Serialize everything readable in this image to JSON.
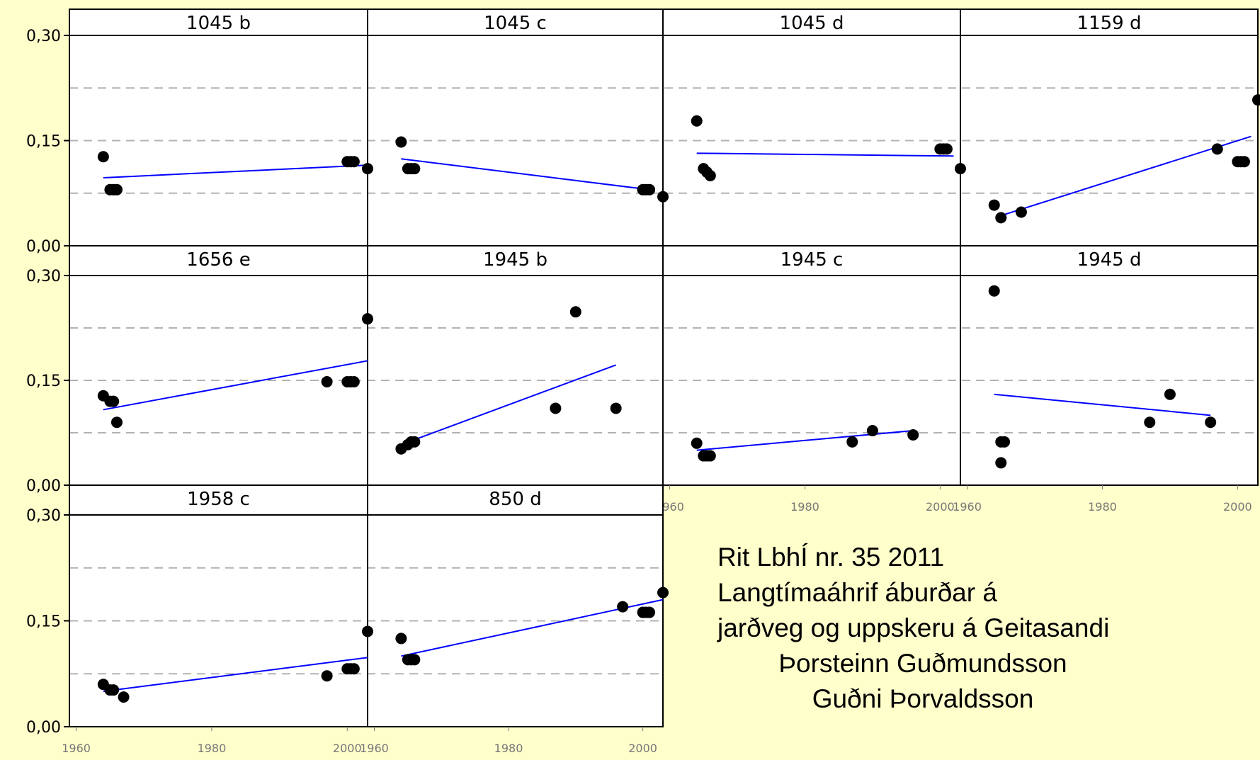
{
  "chart_data": {
    "type": "scatter",
    "ylim": [
      0,
      0.3
    ],
    "xlim": [
      1959,
      2003
    ],
    "y_ticks": [
      "0,00",
      "0,15",
      "0,30"
    ],
    "x_ticks": [
      "1960",
      "1980",
      "2000"
    ],
    "grid": "dashed horizontal at 0.075 and 0.225",
    "panels": [
      {
        "title": "1045 b",
        "points": [
          [
            1964,
            0.127
          ],
          [
            1965,
            0.08
          ],
          [
            1965.5,
            0.08
          ],
          [
            1966,
            0.08
          ],
          [
            2000,
            0.12
          ],
          [
            2000.5,
            0.12
          ],
          [
            2001,
            0.12
          ],
          [
            2003,
            0.11
          ]
        ],
        "fit": [
          [
            1964,
            0.097
          ],
          [
            2003,
            0.115
          ]
        ]
      },
      {
        "title": "1045 c",
        "points": [
          [
            1964,
            0.148
          ],
          [
            1965,
            0.11
          ],
          [
            1965.5,
            0.11
          ],
          [
            1966,
            0.11
          ],
          [
            2000,
            0.08
          ],
          [
            2000.5,
            0.08
          ],
          [
            2001,
            0.08
          ],
          [
            2003,
            0.07
          ]
        ],
        "fit": [
          [
            1964,
            0.124
          ],
          [
            2001,
            0.08
          ]
        ]
      },
      {
        "title": "1045 d",
        "points": [
          [
            1964,
            0.178
          ],
          [
            1965,
            0.11
          ],
          [
            1965.5,
            0.105
          ],
          [
            1966,
            0.1
          ],
          [
            2000,
            0.138
          ],
          [
            2000.5,
            0.138
          ],
          [
            2001,
            0.138
          ],
          [
            2003,
            0.11
          ]
        ],
        "fit": [
          [
            1964,
            0.132
          ],
          [
            2002,
            0.128
          ]
        ]
      },
      {
        "title": "1159 d",
        "points": [
          [
            1964,
            0.058
          ],
          [
            1965,
            0.04
          ],
          [
            1968,
            0.048
          ],
          [
            1997,
            0.138
          ],
          [
            2000,
            0.12
          ],
          [
            2000.5,
            0.12
          ],
          [
            2001,
            0.12
          ],
          [
            2003,
            0.208
          ]
        ],
        "fit": [
          [
            1965,
            0.043
          ],
          [
            2002,
            0.156
          ]
        ]
      },
      {
        "title": "1656 e",
        "points": [
          [
            1964,
            0.128
          ],
          [
            1965,
            0.12
          ],
          [
            1965.5,
            0.12
          ],
          [
            1966,
            0.09
          ],
          [
            1997,
            0.148
          ],
          [
            2000,
            0.148
          ],
          [
            2000.5,
            0.148
          ],
          [
            2001,
            0.148
          ],
          [
            2003,
            0.238
          ]
        ],
        "fit": [
          [
            1964,
            0.108
          ],
          [
            2003,
            0.178
          ]
        ]
      },
      {
        "title": "1945 b",
        "points": [
          [
            1964,
            0.052
          ],
          [
            1965,
            0.058
          ],
          [
            1965.5,
            0.062
          ],
          [
            1966,
            0.062
          ],
          [
            1987,
            0.11
          ],
          [
            1990,
            0.248
          ],
          [
            1996,
            0.11
          ]
        ],
        "fit": [
          [
            1964,
            0.058
          ],
          [
            1996,
            0.172
          ]
        ]
      },
      {
        "title": "1945 c",
        "points": [
          [
            1964,
            0.06
          ],
          [
            1965,
            0.042
          ],
          [
            1965.5,
            0.042
          ],
          [
            1966,
            0.042
          ],
          [
            1987,
            0.062
          ],
          [
            1990,
            0.078
          ],
          [
            1996,
            0.072
          ]
        ],
        "fit": [
          [
            1964,
            0.05
          ],
          [
            1996,
            0.078
          ]
        ]
      },
      {
        "title": "1945 d",
        "points": [
          [
            1964,
            0.278
          ],
          [
            1965,
            0.062
          ],
          [
            1965.5,
            0.062
          ],
          [
            1965,
            0.032
          ],
          [
            1987,
            0.09
          ],
          [
            1990,
            0.13
          ],
          [
            1996,
            0.09
          ]
        ],
        "fit": [
          [
            1964,
            0.13
          ],
          [
            1996,
            0.1
          ]
        ]
      },
      {
        "title": "1958 c",
        "points": [
          [
            1964,
            0.06
          ],
          [
            1965,
            0.052
          ],
          [
            1965.5,
            0.052
          ],
          [
            1967,
            0.042
          ],
          [
            1997,
            0.072
          ],
          [
            2000,
            0.082
          ],
          [
            2000.5,
            0.082
          ],
          [
            2001,
            0.082
          ],
          [
            2003,
            0.135
          ]
        ],
        "fit": [
          [
            1964,
            0.05
          ],
          [
            2003,
            0.098
          ]
        ]
      },
      {
        "title": "850 d",
        "points": [
          [
            1964,
            0.125
          ],
          [
            1965,
            0.095
          ],
          [
            1965.5,
            0.095
          ],
          [
            1966,
            0.095
          ],
          [
            1997,
            0.17
          ],
          [
            2000,
            0.162
          ],
          [
            2000.5,
            0.162
          ],
          [
            2001,
            0.162
          ],
          [
            2003,
            0.19
          ]
        ],
        "fit": [
          [
            1964,
            0.1
          ],
          [
            2003,
            0.18
          ]
        ]
      }
    ]
  },
  "caption": {
    "line1": "Rit LbhÍ nr. 35 2011",
    "line2": "Langtímaáhrif áburðar á",
    "line3": "jarðveg og uppskeru á Geitasandi",
    "line4": "Þorsteinn Guðmundsson",
    "line5": "Guðni Þorvaldsson"
  },
  "colors": {
    "background": "#ffffcc",
    "fit_line": "#0000ff",
    "points": "#000000",
    "grid": "#b3b3b3"
  }
}
